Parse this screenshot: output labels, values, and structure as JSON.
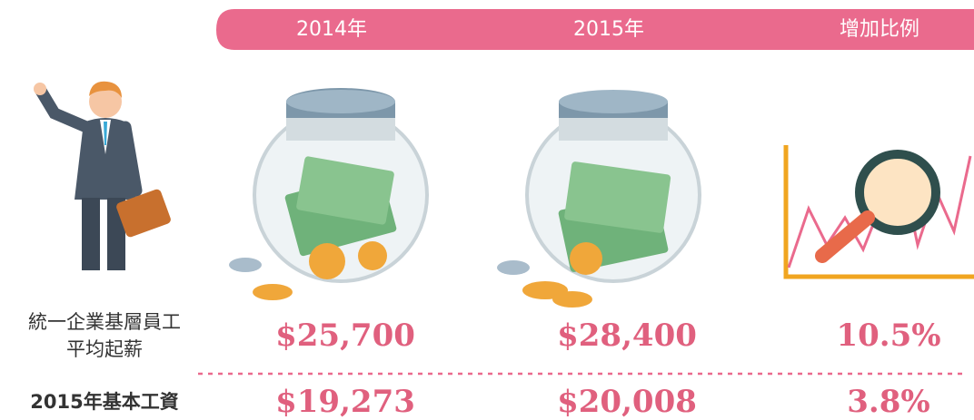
{
  "header": {
    "columns": [
      "2014年",
      "2015年",
      "增加比例"
    ]
  },
  "rows": [
    {
      "label": [
        "統一企業基層員工",
        "平均起薪"
      ],
      "values": [
        "$25,700",
        "$28,400",
        "10.5%"
      ]
    },
    {
      "label": [
        "2015年基本工資"
      ],
      "values": [
        "$19,273",
        "$20,008",
        "3.8%"
      ]
    }
  ]
}
